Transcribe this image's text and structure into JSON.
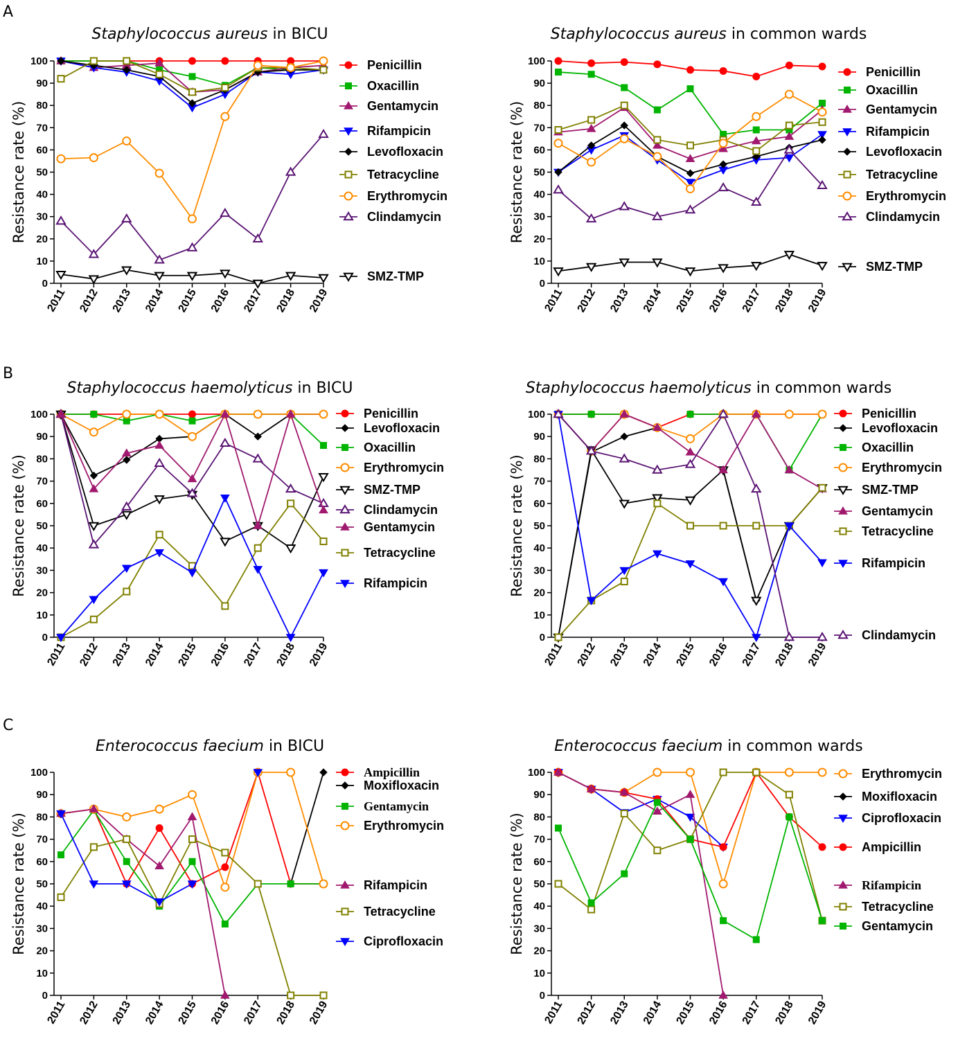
{
  "colors": {
    "red": "#ff0000",
    "green": "#00b400",
    "purple": "#a0196e",
    "blue": "#0000ff",
    "black": "#000000",
    "olive": "#808000",
    "orange": "#ff8c00",
    "indigo": "#5a1473"
  },
  "panels": [
    {
      "letter": "A"
    },
    {
      "letter": "B"
    },
    {
      "letter": "C"
    }
  ],
  "chart_data": [
    {
      "type": "line",
      "panel": "A",
      "title_italic": "Staphylococcus aureus",
      "title_rest": " in BICU",
      "xlabel": "",
      "ylabel": "Resistance rate (%)",
      "categories": [
        "2011",
        "2012",
        "2013",
        "2014",
        "2015",
        "2016",
        "2017",
        "2018",
        "2019"
      ],
      "ylim": [
        0,
        100
      ],
      "yticks": [
        0,
        10,
        20,
        30,
        40,
        50,
        60,
        70,
        80,
        90,
        100
      ],
      "legend_position": "right",
      "series": [
        {
          "name": "Penicillin",
          "color": "red",
          "marker": "circle",
          "values": [
            100,
            100,
            100,
            100,
            100,
            100,
            100,
            100,
            100
          ]
        },
        {
          "name": "Oxacillin",
          "color": "green",
          "marker": "square",
          "values": [
            100,
            100,
            100,
            96,
            93,
            89,
            97,
            96,
            96
          ]
        },
        {
          "name": "Gentamycin",
          "color": "purple",
          "marker": "triangle-up",
          "values": [
            100,
            97,
            98,
            99,
            86,
            87,
            95,
            97,
            98
          ]
        },
        {
          "name": "Rifampicin",
          "color": "blue",
          "marker": "triangle-down",
          "values": [
            100,
            97,
            95,
            91,
            79,
            85,
            95,
            94,
            96
          ]
        },
        {
          "name": "Levofloxacin",
          "color": "black",
          "marker": "diamond",
          "values": [
            100,
            98,
            96,
            93,
            81,
            87,
            95,
            96,
            96
          ]
        },
        {
          "name": "Tetracycline",
          "color": "olive",
          "marker": "square-open",
          "values": [
            92,
            100,
            100,
            94,
            86,
            88,
            97,
            97,
            96
          ]
        },
        {
          "name": "Erythromycin",
          "color": "orange",
          "marker": "circle-open",
          "values": [
            56,
            56.5,
            64,
            49.5,
            29,
            75,
            98,
            97,
            100
          ]
        },
        {
          "name": "Clindamycin",
          "color": "indigo",
          "marker": "triangle-up-open",
          "values": [
            28,
            13,
            29,
            10.5,
            16,
            31.5,
            20,
            50,
            67
          ]
        },
        {
          "name": "SMZ-TMP",
          "color": "black",
          "marker": "triangle-down-open",
          "values": [
            4,
            2,
            6,
            3.5,
            3.5,
            4.5,
            0,
            3.5,
            2.5
          ]
        }
      ]
    },
    {
      "type": "line",
      "panel": "A",
      "title_italic": "Staphylococcus aureus",
      "title_rest": " in common wards",
      "xlabel": "",
      "ylabel": "Resistance rate (%)",
      "categories": [
        "2011",
        "2012",
        "2013",
        "2014",
        "2015",
        "2016",
        "2017",
        "2018",
        "2019"
      ],
      "ylim": [
        0,
        100
      ],
      "yticks": [
        0,
        10,
        20,
        30,
        40,
        50,
        60,
        70,
        80,
        90,
        100
      ],
      "legend_position": "right",
      "series": [
        {
          "name": "Penicillin",
          "color": "red",
          "marker": "circle",
          "values": [
            100,
            99,
            99.5,
            98.5,
            96,
            95.5,
            93,
            98,
            97.5
          ]
        },
        {
          "name": "Oxacillin",
          "color": "green",
          "marker": "square",
          "values": [
            95,
            94,
            88,
            78,
            87.5,
            67,
            69,
            69,
            81
          ]
        },
        {
          "name": "Gentamycin",
          "color": "purple",
          "marker": "triangle-up",
          "values": [
            68,
            69.5,
            79,
            62,
            56,
            60.5,
            64,
            66,
            78
          ]
        },
        {
          "name": "Rifampicin",
          "color": "blue",
          "marker": "triangle-down",
          "values": [
            50,
            60,
            66.5,
            55.5,
            45.5,
            51,
            55.5,
            56.5,
            67
          ]
        },
        {
          "name": "Levofloxacin",
          "color": "black",
          "marker": "diamond",
          "values": [
            50,
            62,
            71,
            57,
            49.5,
            53.5,
            57,
            61,
            64.5
          ]
        },
        {
          "name": "Tetracycline",
          "color": "olive",
          "marker": "square-open",
          "values": [
            69,
            73.5,
            80,
            64.5,
            62,
            64.5,
            59.5,
            71,
            72.5
          ]
        },
        {
          "name": "Erythromycin",
          "color": "orange",
          "marker": "circle-open",
          "values": [
            63,
            54.5,
            65,
            57,
            42.5,
            63,
            75,
            85,
            77
          ]
        },
        {
          "name": "Clindamycin",
          "color": "indigo",
          "marker": "triangle-up-open",
          "values": [
            42,
            29,
            34.5,
            30,
            33,
            43,
            36.5,
            60,
            44
          ]
        },
        {
          "name": "SMZ-TMP",
          "color": "black",
          "marker": "triangle-down-open",
          "values": [
            5.5,
            7.5,
            9.5,
            9.5,
            5.5,
            7,
            8,
            13,
            8
          ]
        }
      ]
    },
    {
      "type": "line",
      "panel": "B",
      "title_italic": "Staphylococcus haemolyticus",
      "title_rest": " in BICU",
      "xlabel": "",
      "ylabel": "Resistance rate (%)",
      "categories": [
        "2011",
        "2012",
        "2013",
        "2014",
        "2015",
        "2016",
        "2017",
        "2018",
        "2019"
      ],
      "ylim": [
        0,
        100
      ],
      "yticks": [
        0,
        10,
        20,
        30,
        40,
        50,
        60,
        70,
        80,
        90,
        100
      ],
      "legend_position": "right",
      "series": [
        {
          "name": "Penicillin",
          "color": "red",
          "marker": "circle",
          "values": [
            100,
            100,
            100,
            100,
            100,
            100,
            100,
            100,
            100
          ]
        },
        {
          "name": "Levofloxacin",
          "color": "black",
          "marker": "diamond",
          "values": [
            100,
            72.5,
            79.5,
            89,
            90,
            100,
            90,
            100,
            100
          ]
        },
        {
          "name": "Oxacillin",
          "color": "green",
          "marker": "square",
          "values": [
            100,
            100,
            97,
            100,
            97,
            100,
            100,
            100,
            86
          ]
        },
        {
          "name": "Erythromycin",
          "color": "orange",
          "marker": "circle-open",
          "values": [
            100,
            92,
            100,
            100,
            90,
            100,
            100,
            100,
            100
          ]
        },
        {
          "name": "SMZ-TMP",
          "color": "black",
          "marker": "triangle-down-open",
          "values": [
            100,
            50,
            55,
            62,
            64,
            43,
            50,
            40,
            72
          ]
        },
        {
          "name": "Clindamycin",
          "color": "indigo",
          "marker": "triangle-up-open",
          "values": [
            100,
            41.5,
            58.5,
            78,
            64.5,
            87,
            80,
            66.5,
            60
          ]
        },
        {
          "name": "Gentamycin",
          "color": "purple",
          "marker": "triangle-up",
          "values": [
            100,
            66.5,
            82.5,
            86,
            71,
            100,
            50,
            100,
            57
          ]
        },
        {
          "name": "Tetracycline",
          "color": "olive",
          "marker": "square-open",
          "values": [
            0,
            8,
            20.5,
            46,
            32,
            14,
            40,
            60,
            43
          ]
        },
        {
          "name": "Rifampicin",
          "color": "blue",
          "marker": "triangle-down",
          "values": [
            0,
            17,
            31,
            38,
            29,
            62.5,
            30.5,
            0,
            29
          ]
        }
      ]
    },
    {
      "type": "line",
      "panel": "B",
      "title_italic": "Staphylococcus haemolyticus",
      "title_rest": " in common wards",
      "xlabel": "",
      "ylabel": "Resistance rate (%)",
      "categories": [
        "2011",
        "2012",
        "2013",
        "2014",
        "2015",
        "2016",
        "2017",
        "2018",
        "2019"
      ],
      "ylim": [
        0,
        100
      ],
      "yticks": [
        0,
        10,
        20,
        30,
        40,
        50,
        60,
        70,
        80,
        90,
        100
      ],
      "legend_position": "right",
      "series": [
        {
          "name": "Penicillin",
          "color": "red",
          "marker": "circle",
          "values": [
            100,
            100,
            100,
            94,
            100,
            100,
            100,
            100,
            100
          ]
        },
        {
          "name": "Levofloxacin",
          "color": "black",
          "marker": "diamond",
          "values": [
            0,
            83,
            90,
            94,
            null,
            75,
            16.5,
            null,
            null
          ]
        },
        {
          "name": "Oxacillin",
          "color": "green",
          "marker": "square",
          "values": [
            100,
            100,
            100,
            null,
            100,
            100,
            100,
            75,
            100
          ]
        },
        {
          "name": "Erythromycin",
          "color": "orange",
          "marker": "circle-open",
          "values": [
            100,
            83.5,
            100,
            94,
            89,
            100,
            100,
            100,
            100
          ]
        },
        {
          "name": "SMZ-TMP",
          "color": "black",
          "marker": "triangle-down-open",
          "values": [
            0,
            84,
            60,
            62.5,
            61.5,
            75,
            16.5,
            50,
            67
          ]
        },
        {
          "name": "Gentamycin",
          "color": "purple",
          "marker": "triangle-up",
          "values": [
            100,
            83.5,
            100,
            94,
            83,
            75,
            100,
            75,
            66.5
          ]
        },
        {
          "name": "Tetracycline",
          "color": "olive",
          "marker": "square-open",
          "values": [
            0,
            16.5,
            25,
            60,
            50,
            50,
            50,
            50,
            67
          ]
        },
        {
          "name": "Rifampicin",
          "color": "blue",
          "marker": "triangle-down",
          "values": [
            100,
            16.5,
            30,
            37.5,
            33,
            25,
            0,
            50,
            33.5
          ]
        },
        {
          "name": "Clindamycin",
          "color": "indigo",
          "marker": "triangle-up-open",
          "values": [
            100,
            83.5,
            80,
            75,
            77.5,
            100,
            66.5,
            0,
            0
          ]
        }
      ]
    },
    {
      "type": "line",
      "panel": "C",
      "title_italic": "Enterococcus faecium",
      "title_rest": " in BICU",
      "xlabel": "",
      "ylabel": "Resistance rate (%)",
      "categories": [
        "2011",
        "2012",
        "2013",
        "2014",
        "2015",
        "2016",
        "2017",
        "2018",
        "2019"
      ],
      "ylim": [
        0,
        100
      ],
      "yticks": [
        0,
        10,
        20,
        30,
        40,
        50,
        60,
        70,
        80,
        90,
        100
      ],
      "legend_position": "right",
      "series": [
        {
          "name": "Ampicillin",
          "color": "red",
          "marker": "circle",
          "serif": true,
          "values": [
            81.5,
            83.5,
            50,
            75,
            50,
            57.5,
            100,
            50,
            50
          ]
        },
        {
          "name": "Moxifloxacin",
          "color": "black",
          "marker": "diamond",
          "values": [
            null,
            null,
            null,
            null,
            null,
            null,
            null,
            50,
            100
          ]
        },
        {
          "name": "Gentamycin",
          "color": "green",
          "marker": "square",
          "serif": true,
          "values": [
            63,
            83,
            60,
            40,
            60,
            32,
            50,
            50,
            50
          ]
        },
        {
          "name": "Erythromycin",
          "color": "orange",
          "marker": "circle-open",
          "values": [
            81.5,
            83.5,
            80,
            83.5,
            90,
            48.5,
            100,
            100,
            50
          ]
        },
        {
          "name": "Rifampicin",
          "color": "purple",
          "marker": "triangle-up",
          "values": [
            81.5,
            83.5,
            70,
            58,
            80,
            0,
            null,
            null,
            null
          ]
        },
        {
          "name": "Tetracycline",
          "color": "olive",
          "marker": "square-open",
          "values": [
            44,
            66.5,
            70,
            41,
            70,
            64,
            50,
            0,
            0
          ]
        },
        {
          "name": "Ciprofloxacin",
          "color": "blue",
          "marker": "triangle-down",
          "values": [
            81.5,
            50,
            50,
            42,
            50,
            null,
            100,
            null,
            null
          ]
        }
      ]
    },
    {
      "type": "line",
      "panel": "C",
      "title_italic": "Enterococcus faecium",
      "title_rest": " in common wards",
      "xlabel": "",
      "ylabel": "Resistance rate (%)",
      "categories": [
        "2011",
        "2012",
        "2013",
        "2014",
        "2015",
        "2016",
        "2017",
        "2018",
        "2019"
      ],
      "ylim": [
        0,
        100
      ],
      "yticks": [
        0,
        10,
        20,
        30,
        40,
        50,
        60,
        70,
        80,
        90,
        100
      ],
      "legend_position": "right",
      "series": [
        {
          "name": "Erythromycin",
          "color": "orange",
          "marker": "circle-open",
          "values": [
            100,
            92.5,
            91,
            100,
            100,
            50,
            100,
            100,
            100
          ]
        },
        {
          "name": "Moxifloxacin",
          "color": "black",
          "marker": "diamond",
          "values": [
            null,
            null,
            null,
            null,
            null,
            null,
            100,
            null,
            null
          ]
        },
        {
          "name": "Ciprofloxacin",
          "color": "blue",
          "marker": "triangle-down",
          "values": [
            100,
            92.5,
            82,
            88,
            80,
            66.5,
            null,
            null,
            null
          ]
        },
        {
          "name": "Ampicillin",
          "color": "red",
          "marker": "circle",
          "values": [
            100,
            92.5,
            91,
            88,
            70,
            66.5,
            100,
            80,
            66.5
          ]
        },
        {
          "name": "Rifampicin",
          "color": "purple",
          "marker": "triangle-up",
          "serif": true,
          "values": [
            100,
            92.5,
            91,
            82.5,
            90,
            0,
            null,
            null,
            null
          ]
        },
        {
          "name": "Tetracycline",
          "color": "olive",
          "marker": "square-open",
          "values": [
            50,
            38.5,
            81.5,
            65,
            70,
            100,
            100,
            90,
            33.5
          ]
        },
        {
          "name": "Gentamycin",
          "color": "green",
          "marker": "square",
          "values": [
            75,
            41.5,
            54.5,
            86.5,
            70,
            33.5,
            25,
            80,
            33.5
          ]
        }
      ]
    }
  ]
}
